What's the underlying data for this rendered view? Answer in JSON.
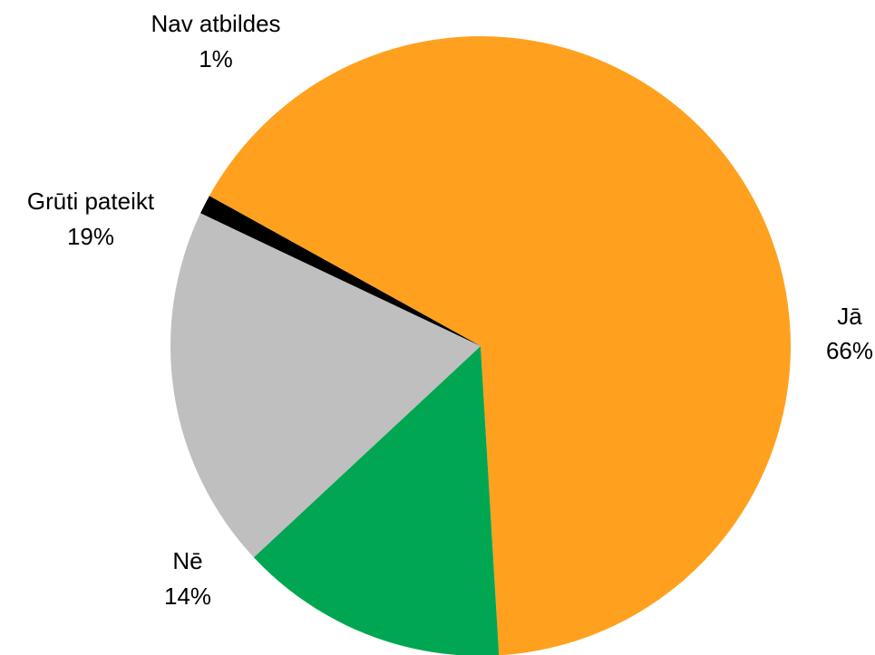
{
  "chart_data": {
    "type": "pie",
    "title": "",
    "start_angle_deg": -61,
    "direction": "clockwise",
    "slices": [
      {
        "label": "Jā",
        "value": 66,
        "value_label": "66%",
        "color": "#ffa11f"
      },
      {
        "label": "Nē",
        "value": 14,
        "value_label": "14%",
        "color": "#00a651"
      },
      {
        "label": "Grūti pateikt",
        "value": 19,
        "value_label": "19%",
        "color": "#bfbfbf"
      },
      {
        "label": "Nav atbildes",
        "value": 1,
        "value_label": "1%",
        "color": "#000000"
      }
    ]
  }
}
